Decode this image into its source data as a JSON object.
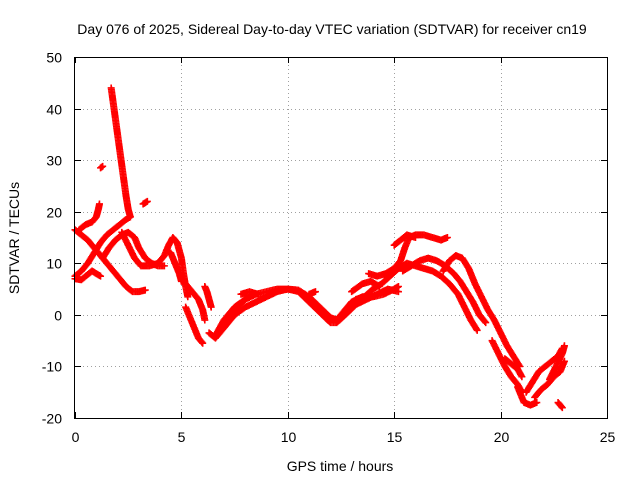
{
  "chart_data": {
    "type": "scatter",
    "title": "Day 076 of 2025, Sidereal Day-to-day VTEC variation (SDTVAR) for receiver cn19",
    "xlabel": "GPS time / hours",
    "ylabel": "SDTVAR / TECUs",
    "xlim": [
      0,
      25
    ],
    "ylim": [
      -20,
      50
    ],
    "xticks": [
      0,
      5,
      10,
      15,
      20,
      25
    ],
    "yticks": [
      -20,
      -10,
      0,
      10,
      20,
      30,
      40,
      50
    ],
    "grid": true,
    "marker": "+",
    "marker_color": "#ff0000",
    "series": [
      {
        "name": "SDTVAR",
        "tracks": [
          [
            [
              0.0,
              16.5
            ],
            [
              0.3,
              15.5
            ],
            [
              0.6,
              14.5
            ],
            [
              0.9,
              13.0
            ],
            [
              1.2,
              11.5
            ],
            [
              1.5,
              10.0
            ],
            [
              1.8,
              8.5
            ],
            [
              2.1,
              7.0
            ],
            [
              2.4,
              5.5
            ],
            [
              2.7,
              4.5
            ],
            [
              3.0,
              4.5
            ],
            [
              3.3,
              4.8
            ]
          ],
          [
            [
              0.0,
              7.5
            ],
            [
              0.3,
              8.5
            ],
            [
              0.6,
              10.0
            ],
            [
              0.9,
              12.0
            ],
            [
              1.2,
              14.0
            ],
            [
              1.5,
              15.5
            ],
            [
              1.8,
              16.5
            ],
            [
              2.1,
              17.5
            ],
            [
              2.4,
              18.5
            ],
            [
              2.6,
              19.0
            ]
          ],
          [
            [
              0.0,
              7.0
            ],
            [
              0.3,
              6.8
            ],
            [
              0.5,
              7.5
            ],
            [
              0.8,
              8.5
            ],
            [
              1.0,
              8.0
            ],
            [
              1.2,
              7.5
            ]
          ],
          [
            [
              0.2,
              16.5
            ],
            [
              0.5,
              17.5
            ],
            [
              0.8,
              18.0
            ],
            [
              1.0,
              19.0
            ],
            [
              1.1,
              20.5
            ],
            [
              1.15,
              21.5
            ]
          ],
          [
            [
              1.2,
              28.5
            ],
            [
              1.3,
              28.8
            ]
          ],
          [
            [
              1.7,
              44.0
            ],
            [
              1.8,
              41.0
            ],
            [
              1.9,
              38.0
            ],
            [
              2.0,
              35.0
            ],
            [
              2.1,
              32.0
            ],
            [
              2.2,
              29.0
            ],
            [
              2.3,
              26.0
            ],
            [
              2.4,
              23.0
            ],
            [
              2.5,
              20.5
            ],
            [
              2.6,
              19.0
            ]
          ],
          [
            [
              1.3,
              11.0
            ],
            [
              1.6,
              13.0
            ],
            [
              1.9,
              14.5
            ],
            [
              2.2,
              15.5
            ],
            [
              2.5,
              16.0
            ],
            [
              2.8,
              15.0
            ],
            [
              3.0,
              13.0
            ],
            [
              3.3,
              11.0
            ],
            [
              3.6,
              10.0
            ],
            [
              3.9,
              9.5
            ],
            [
              4.2,
              9.5
            ]
          ],
          [
            [
              2.2,
              16.0
            ],
            [
              2.5,
              13.5
            ],
            [
              2.8,
              11.0
            ],
            [
              3.1,
              9.5
            ],
            [
              3.5,
              9.5
            ],
            [
              3.9,
              10.0
            ],
            [
              4.2,
              11.5
            ],
            [
              4.4,
              13.5
            ],
            [
              4.6,
              15.0
            ],
            [
              4.8,
              14.0
            ],
            [
              5.0,
              11.0
            ],
            [
              5.1,
              8.0
            ],
            [
              5.2,
              5.5
            ],
            [
              5.3,
              3.5
            ]
          ],
          [
            [
              3.2,
              21.5
            ],
            [
              3.4,
              22.0
            ]
          ],
          [
            [
              4.3,
              12.5
            ],
            [
              4.5,
              12.0
            ],
            [
              4.6,
              11.0
            ],
            [
              4.7,
              10.0
            ],
            [
              4.8,
              9.0
            ],
            [
              4.9,
              8.0
            ],
            [
              5.0,
              6.5
            ]
          ],
          [
            [
              5.2,
              6.0
            ],
            [
              5.4,
              5.0
            ],
            [
              5.6,
              4.0
            ],
            [
              5.8,
              3.0
            ],
            [
              5.9,
              2.0
            ],
            [
              6.0,
              1.0
            ],
            [
              6.1,
              -1.0
            ]
          ],
          [
            [
              5.2,
              1.5
            ],
            [
              5.4,
              -0.5
            ],
            [
              5.6,
              -2.5
            ],
            [
              5.8,
              -4.5
            ],
            [
              6.0,
              -5.5
            ]
          ],
          [
            [
              6.1,
              5.5
            ],
            [
              6.2,
              4.5
            ],
            [
              6.3,
              3.0
            ],
            [
              6.4,
              1.5
            ]
          ],
          [
            [
              6.3,
              -3.5
            ],
            [
              6.6,
              -4.5
            ],
            [
              6.9,
              -3.0
            ],
            [
              7.2,
              -1.5
            ],
            [
              7.5,
              0.0
            ],
            [
              8.0,
              1.5
            ],
            [
              8.5,
              2.5
            ],
            [
              9.0,
              3.5
            ],
            [
              9.5,
              4.5
            ],
            [
              10.0,
              5.0
            ],
            [
              10.5,
              4.8
            ],
            [
              11.0,
              3.5
            ],
            [
              11.5,
              1.5
            ],
            [
              12.0,
              -0.5
            ],
            [
              12.3,
              -1.0
            ],
            [
              12.6,
              0.5
            ],
            [
              13.0,
              2.5
            ],
            [
              13.5,
              3.5
            ],
            [
              14.0,
              3.5
            ],
            [
              14.5,
              4.0
            ],
            [
              15.0,
              5.0
            ],
            [
              15.2,
              5.5
            ]
          ],
          [
            [
              7.0,
              -1.5
            ],
            [
              7.5,
              1.0
            ],
            [
              8.0,
              3.0
            ],
            [
              8.5,
              4.0
            ],
            [
              9.0,
              4.5
            ],
            [
              9.5,
              5.0
            ],
            [
              10.0,
              5.0
            ],
            [
              10.5,
              4.5
            ],
            [
              11.0,
              2.5
            ],
            [
              11.5,
              0.5
            ],
            [
              12.0,
              -1.5
            ],
            [
              12.3,
              -1.5
            ],
            [
              12.7,
              0.0
            ],
            [
              13.2,
              2.0
            ],
            [
              13.7,
              3.0
            ],
            [
              14.2,
              4.0
            ],
            [
              14.7,
              5.0
            ],
            [
              15.2,
              4.5
            ]
          ],
          [
            [
              6.6,
              -4.0
            ],
            [
              7.0,
              -1.0
            ],
            [
              7.5,
              1.5
            ],
            [
              8.0,
              3.0
            ]
          ],
          [
            [
              7.8,
              4.0
            ],
            [
              8.2,
              4.5
            ],
            [
              8.6,
              4.0
            ]
          ],
          [
            [
              11.0,
              4.0
            ],
            [
              11.3,
              4.5
            ]
          ],
          [
            [
              13.0,
              4.5
            ],
            [
              13.5,
              6.0
            ],
            [
              13.9,
              6.5
            ],
            [
              14.3,
              5.5
            ]
          ],
          [
            [
              13.8,
              8.0
            ],
            [
              14.2,
              7.5
            ],
            [
              14.6,
              8.0
            ],
            [
              15.0,
              9.0
            ],
            [
              15.3,
              10.5
            ],
            [
              15.5,
              13.0
            ],
            [
              15.7,
              15.0
            ],
            [
              16.0,
              15.5
            ],
            [
              16.4,
              15.5
            ],
            [
              16.8,
              15.0
            ],
            [
              17.2,
              14.5
            ],
            [
              17.5,
              15.0
            ]
          ],
          [
            [
              13.2,
              3.0
            ],
            [
              13.6,
              3.5
            ],
            [
              14.0,
              5.0
            ],
            [
              14.4,
              6.0
            ],
            [
              14.8,
              7.5
            ],
            [
              15.2,
              9.0
            ],
            [
              15.6,
              10.0
            ],
            [
              16.0,
              9.5
            ],
            [
              16.4,
              9.0
            ],
            [
              16.8,
              8.5
            ],
            [
              17.2,
              7.5
            ],
            [
              17.6,
              6.0
            ],
            [
              18.0,
              4.0
            ],
            [
              18.3,
              1.5
            ],
            [
              18.6,
              -1.0
            ],
            [
              18.9,
              -3.0
            ]
          ],
          [
            [
              15.0,
              13.5
            ],
            [
              15.3,
              14.5
            ],
            [
              15.6,
              15.5
            ],
            [
              16.0,
              15.0
            ]
          ],
          [
            [
              15.4,
              8.5
            ],
            [
              15.8,
              9.5
            ],
            [
              16.2,
              10.5
            ],
            [
              16.6,
              11.0
            ],
            [
              17.0,
              10.5
            ],
            [
              17.4,
              9.5
            ],
            [
              17.8,
              8.0
            ],
            [
              18.1,
              6.5
            ],
            [
              18.4,
              4.5
            ],
            [
              18.7,
              2.5
            ],
            [
              19.0,
              0.0
            ],
            [
              19.3,
              -1.5
            ]
          ],
          [
            [
              17.3,
              8.5
            ],
            [
              17.6,
              10.5
            ],
            [
              17.9,
              11.5
            ],
            [
              18.2,
              11.0
            ],
            [
              18.5,
              9.0
            ],
            [
              18.8,
              6.0
            ],
            [
              19.1,
              3.5
            ],
            [
              19.4,
              1.0
            ],
            [
              19.7,
              -1.0
            ],
            [
              20.0,
              -3.5
            ],
            [
              20.3,
              -6.0
            ],
            [
              20.6,
              -8.0
            ],
            [
              20.9,
              -10.0
            ]
          ],
          [
            [
              19.6,
              -5.0
            ],
            [
              19.9,
              -7.5
            ],
            [
              20.2,
              -10.0
            ],
            [
              20.5,
              -12.0
            ],
            [
              20.8,
              -13.5
            ],
            [
              21.0,
              -15.0
            ]
          ],
          [
            [
              20.2,
              -8.5
            ],
            [
              20.5,
              -9.5
            ],
            [
              20.8,
              -10.5
            ],
            [
              21.0,
              -12.0
            ]
          ],
          [
            [
              20.8,
              -14.0
            ],
            [
              21.1,
              -17.0
            ],
            [
              21.4,
              -17.5
            ],
            [
              21.7,
              -17.0
            ]
          ],
          [
            [
              21.2,
              -15.0
            ],
            [
              21.5,
              -13.0
            ],
            [
              21.8,
              -11.0
            ],
            [
              22.1,
              -10.0
            ],
            [
              22.4,
              -9.0
            ],
            [
              22.7,
              -8.0
            ],
            [
              22.9,
              -6.5
            ]
          ],
          [
            [
              21.6,
              -16.0
            ],
            [
              21.9,
              -14.5
            ],
            [
              22.2,
              -13.5
            ],
            [
              22.5,
              -12.0
            ],
            [
              22.8,
              -11.0
            ],
            [
              23.0,
              -9.0
            ]
          ],
          [
            [
              22.3,
              -12.5
            ],
            [
              22.6,
              -10.0
            ],
            [
              22.9,
              -7.5
            ],
            [
              23.0,
              -6.0
            ]
          ],
          [
            [
              22.7,
              -17.0
            ],
            [
              22.9,
              -18.0
            ]
          ]
        ]
      }
    ]
  }
}
